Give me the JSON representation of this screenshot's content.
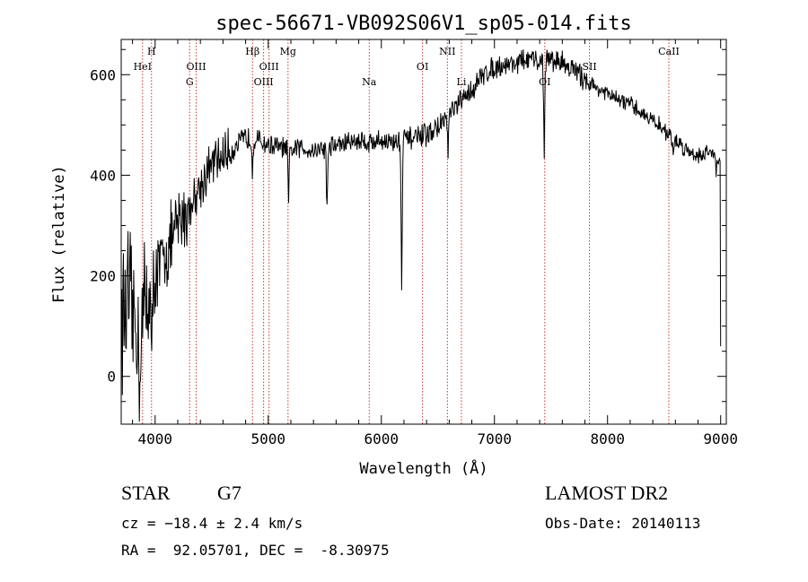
{
  "chart_data": {
    "type": "line",
    "title": "spec-56671-VB092S06V1_sp05-014.fits",
    "xlabel": "Wavelength (Å)",
    "ylabel": "Flux (relative)",
    "xlim": [
      3700,
      9050
    ],
    "ylim": [
      -95,
      670
    ],
    "xticks": [
      4000,
      5000,
      6000,
      7000,
      8000,
      9000
    ],
    "yticks": [
      0,
      200,
      400,
      600
    ],
    "grid": false,
    "spectrum_anchors": [
      [
        3700,
        110
      ],
      [
        3760,
        150
      ],
      [
        3800,
        120
      ],
      [
        3860,
        90
      ],
      [
        3900,
        130
      ],
      [
        3950,
        170
      ],
      [
        4000,
        200
      ],
      [
        4050,
        220
      ],
      [
        4100,
        250
      ],
      [
        4150,
        270
      ],
      [
        4200,
        300
      ],
      [
        4250,
        320
      ],
      [
        4300,
        330
      ],
      [
        4350,
        360
      ],
      [
        4400,
        380
      ],
      [
        4450,
        400
      ],
      [
        4500,
        420
      ],
      [
        4550,
        430
      ],
      [
        4600,
        440
      ],
      [
        4700,
        455
      ],
      [
        4800,
        475
      ],
      [
        4900,
        470
      ],
      [
        5000,
        460
      ],
      [
        5100,
        455
      ],
      [
        5200,
        450
      ],
      [
        5300,
        455
      ],
      [
        5400,
        450
      ],
      [
        5500,
        455
      ],
      [
        5600,
        460
      ],
      [
        5700,
        465
      ],
      [
        5800,
        470
      ],
      [
        5900,
        465
      ],
      [
        6000,
        470
      ],
      [
        6100,
        465
      ],
      [
        6200,
        470
      ],
      [
        6300,
        475
      ],
      [
        6400,
        480
      ],
      [
        6500,
        495
      ],
      [
        6600,
        520
      ],
      [
        6700,
        545
      ],
      [
        6800,
        570
      ],
      [
        6900,
        600
      ],
      [
        7000,
        615
      ],
      [
        7100,
        620
      ],
      [
        7200,
        625
      ],
      [
        7300,
        630
      ],
      [
        7400,
        625
      ],
      [
        7500,
        630
      ],
      [
        7600,
        625
      ],
      [
        7700,
        610
      ],
      [
        7800,
        590
      ],
      [
        7900,
        575
      ],
      [
        8000,
        560
      ],
      [
        8100,
        550
      ],
      [
        8200,
        540
      ],
      [
        8300,
        525
      ],
      [
        8400,
        510
      ],
      [
        8500,
        490
      ],
      [
        8600,
        470
      ],
      [
        8700,
        450
      ],
      [
        8800,
        440
      ],
      [
        8900,
        445
      ],
      [
        8950,
        450
      ],
      [
        9000,
        420
      ]
    ],
    "absorption_features": [
      [
        6180,
        290
      ],
      [
        7440,
        170
      ],
      [
        5520,
        130
      ],
      [
        5180,
        110
      ],
      [
        6590,
        70
      ],
      [
        4860,
        55
      ],
      [
        3970,
        180
      ],
      [
        3860,
        140
      ],
      [
        8580,
        45
      ],
      [
        8960,
        40
      ]
    ],
    "spectral_lines": [
      {
        "label": "HeI",
        "x": 3889,
        "row": 2
      },
      {
        "label": "H",
        "x": 3968,
        "row": 1
      },
      {
        "label": "OIII",
        "x": 4363,
        "row": 2
      },
      {
        "label": "G",
        "x": 4305,
        "row": 3
      },
      {
        "label": "Hβ",
        "x": 4861,
        "row": 1
      },
      {
        "label": "OIII",
        "x": 4959,
        "row": 3
      },
      {
        "label": "OIII",
        "x": 5007,
        "row": 2
      },
      {
        "label": "Mg",
        "x": 5175,
        "row": 1
      },
      {
        "label": "Na",
        "x": 5893,
        "row": 3
      },
      {
        "label": "OI",
        "x": 6364,
        "row": 2
      },
      {
        "label": "NII",
        "x": 6584,
        "row": 1
      },
      {
        "label": "Li",
        "x": 6708,
        "row": 3
      },
      {
        "label": "OI",
        "x": 7445,
        "row": 3
      },
      {
        "label": "SII",
        "x": 7840,
        "row": 2
      },
      {
        "label": "CaII",
        "x": 8542,
        "row": 1
      }
    ]
  },
  "info": {
    "class_label": "STAR",
    "subclass": "G7",
    "survey": "LAMOST DR2",
    "cz": "cz = −18.4 ± 2.4 km/s",
    "obs_date": "Obs-Date: 20140113",
    "coords": "RA =  92.05701, DEC =  -8.30975"
  },
  "colors": {
    "line": "#000000",
    "marker": "#cc3333",
    "background": "#ffffff"
  }
}
